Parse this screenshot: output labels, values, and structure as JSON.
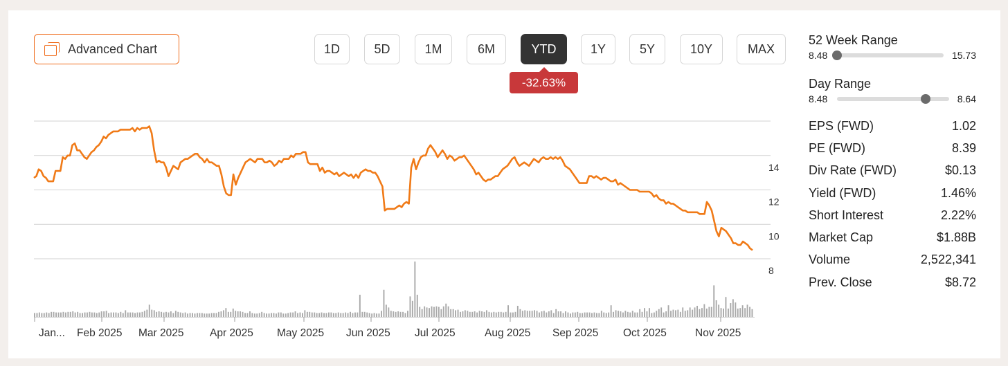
{
  "toolbar": {
    "advanced_chart_label": "Advanced Chart",
    "ranges": [
      "1D",
      "5D",
      "1M",
      "6M",
      "YTD",
      "1Y",
      "5Y",
      "10Y",
      "MAX"
    ],
    "active_range": "YTD",
    "change_badge": "-32.63%"
  },
  "colors": {
    "line": "#f07a17",
    "accent": "#ef6b1a",
    "badge": "#c8383a",
    "volume": "#a9a9a9"
  },
  "stats": {
    "week52": {
      "title": "52 Week Range",
      "low": "8.48",
      "high": "15.73",
      "position": 0.0
    },
    "day": {
      "title": "Day Range",
      "low": "8.48",
      "high": "8.64",
      "position": 0.79
    },
    "rows": [
      {
        "label": "EPS (FWD)",
        "value": "1.02"
      },
      {
        "label": "PE (FWD)",
        "value": "8.39"
      },
      {
        "label": "Div Rate (FWD)",
        "value": "$0.13"
      },
      {
        "label": "Yield (FWD)",
        "value": "1.46%"
      },
      {
        "label": "Short Interest",
        "value": "2.22%"
      },
      {
        "label": "Market Cap",
        "value": "$1.88B"
      },
      {
        "label": "Volume",
        "value": "2,522,341"
      },
      {
        "label": "Prev. Close",
        "value": "$8.72"
      }
    ]
  },
  "chart_data": {
    "type": "line",
    "x_tick_labels": [
      "Jan...",
      "Feb 2025",
      "Mar 2025",
      "Apr 2025",
      "May 2025",
      "Jun 2025",
      "Jul 2025",
      "Aug 2025",
      "Sep 2025",
      "Oct 2025",
      "Nov 2025"
    ],
    "y_tick_labels": [
      "14",
      "12",
      "10",
      "8"
    ],
    "ylim": [
      8,
      16
    ],
    "grid": true,
    "series": [
      {
        "values": [
          12.7,
          12.8,
          13.2,
          13.1,
          12.8,
          12.7,
          12.5,
          12.5,
          12.5,
          13.1,
          13.1,
          13.1,
          13.9,
          13.8,
          14.0,
          14.0,
          14.6,
          14.7,
          14.3,
          14.3,
          14.1,
          13.9,
          13.8,
          14.0,
          14.2,
          14.3,
          14.5,
          14.6,
          14.8,
          15.1,
          15.0,
          15.2,
          15.3,
          15.4,
          15.4,
          15.4,
          15.5,
          15.5,
          15.5,
          15.5,
          15.5,
          15.6,
          15.4,
          15.6,
          15.5,
          15.6,
          15.6,
          15.6,
          15.7,
          15.3,
          14.3,
          13.6,
          13.7,
          13.6,
          13.6,
          13.3,
          12.8,
          13.1,
          13.4,
          13.3,
          13.2,
          13.6,
          13.7,
          13.8,
          13.8,
          13.9,
          14.0,
          14.1,
          14.1,
          13.9,
          13.8,
          13.6,
          13.8,
          13.6,
          13.6,
          13.5,
          13.4,
          13.4,
          12.9,
          12.2,
          11.8,
          11.7,
          11.7,
          12.9,
          12.3,
          12.7,
          13.0,
          13.3,
          13.6,
          13.7,
          13.8,
          13.7,
          13.6,
          13.8,
          13.8,
          13.8,
          13.6,
          13.6,
          13.7,
          13.6,
          13.4,
          13.5,
          13.7,
          13.6,
          13.8,
          13.8,
          13.8,
          14.0,
          13.9,
          14.1,
          14.1,
          14.1,
          14.2,
          14.2,
          13.6,
          13.5,
          13.5,
          13.5,
          13.5,
          13.1,
          13.3,
          13.0,
          13.1,
          13.1,
          13.0,
          12.9,
          13.0,
          12.8,
          12.9,
          13.0,
          12.9,
          12.8,
          12.9,
          12.7,
          12.9,
          12.7,
          13.0,
          13.1,
          13.2,
          13.1,
          13.1,
          13.0,
          13.0,
          12.8,
          12.5,
          12.2,
          10.8,
          10.9,
          10.9,
          10.9,
          10.9,
          11.0,
          11.1,
          11.0,
          11.2,
          11.3,
          11.2,
          13.3,
          13.8,
          13.2,
          13.6,
          13.9,
          14.0,
          14.0,
          14.4,
          14.6,
          14.4,
          14.2,
          13.9,
          14.1,
          14.3,
          14.1,
          13.8,
          14.0,
          13.9,
          13.7,
          13.8,
          13.9,
          13.9,
          14.0,
          13.8,
          13.6,
          13.4,
          13.2,
          12.9,
          13.0,
          12.8,
          12.6,
          12.5,
          12.6,
          12.6,
          12.7,
          12.8,
          12.8,
          13.0,
          13.2,
          13.3,
          13.4,
          13.6,
          13.8,
          13.9,
          13.6,
          13.4,
          13.5,
          13.6,
          13.5,
          13.4,
          13.6,
          13.8,
          13.7,
          13.6,
          13.8,
          13.9,
          13.8,
          13.8,
          13.9,
          13.8,
          13.9,
          13.8,
          13.9,
          13.7,
          13.4,
          13.3,
          13.2,
          13.0,
          12.8,
          12.6,
          12.4,
          12.4,
          12.4,
          12.4,
          12.8,
          12.8,
          12.7,
          12.8,
          12.7,
          12.6,
          12.7,
          12.7,
          12.6,
          12.5,
          12.5,
          12.6,
          12.3,
          12.4,
          12.3,
          12.2,
          12.1,
          12.0,
          12.0,
          12.0,
          12.0,
          11.9,
          11.9,
          11.9,
          11.9,
          11.9,
          11.8,
          11.6,
          11.7,
          11.5,
          11.4,
          11.4,
          11.2,
          11.3,
          11.2,
          11.2,
          11.1,
          11.0,
          10.9,
          10.8,
          10.8,
          10.7,
          10.7,
          10.7,
          10.7,
          10.7,
          10.6,
          10.6,
          10.6,
          11.3,
          11.1,
          10.8,
          10.2,
          9.6,
          9.3,
          9.8,
          9.7,
          9.6,
          9.4,
          9.2,
          8.9,
          8.9,
          8.8,
          8.8,
          9.0,
          8.9,
          8.8,
          8.6,
          8.5
        ]
      }
    ],
    "volume": [
      0.07,
      0.07,
      0.08,
      0.07,
      0.07,
      0.08,
      0.07,
      0.09,
      0.09,
      0.08,
      0.08,
      0.08,
      0.09,
      0.08,
      0.09,
      0.09,
      0.1,
      0.08,
      0.09,
      0.07,
      0.07,
      0.08,
      0.08,
      0.09,
      0.08,
      0.08,
      0.07,
      0.08,
      0.1,
      0.1,
      0.11,
      0.07,
      0.08,
      0.08,
      0.08,
      0.07,
      0.09,
      0.07,
      0.12,
      0.08,
      0.08,
      0.08,
      0.07,
      0.08,
      0.08,
      0.09,
      0.11,
      0.13,
      0.22,
      0.13,
      0.12,
      0.09,
      0.1,
      0.09,
      0.08,
      0.09,
      0.08,
      0.1,
      0.07,
      0.11,
      0.09,
      0.08,
      0.07,
      0.08,
      0.06,
      0.07,
      0.07,
      0.06,
      0.07,
      0.07,
      0.07,
      0.06,
      0.06,
      0.06,
      0.07,
      0.07,
      0.07,
      0.09,
      0.1,
      0.12,
      0.16,
      0.09,
      0.09,
      0.15,
      0.11,
      0.1,
      0.1,
      0.09,
      0.07,
      0.07,
      0.1,
      0.07,
      0.06,
      0.06,
      0.07,
      0.09,
      0.07,
      0.06,
      0.06,
      0.07,
      0.07,
      0.06,
      0.08,
      0.08,
      0.06,
      0.06,
      0.07,
      0.08,
      0.08,
      0.1,
      0.07,
      0.08,
      0.07,
      0.12,
      0.09,
      0.09,
      0.08,
      0.08,
      0.07,
      0.07,
      0.08,
      0.07,
      0.07,
      0.08,
      0.08,
      0.07,
      0.07,
      0.08,
      0.07,
      0.07,
      0.08,
      0.07,
      0.09,
      0.07,
      0.08,
      0.08,
      0.4,
      0.09,
      0.09,
      0.08,
      0.07,
      0.06,
      0.07,
      0.06,
      0.06,
      0.11,
      0.49,
      0.22,
      0.17,
      0.11,
      0.1,
      0.09,
      0.1,
      0.09,
      0.09,
      0.07,
      0.11,
      0.37,
      0.29,
      1.0,
      0.4,
      0.18,
      0.14,
      0.19,
      0.17,
      0.16,
      0.19,
      0.18,
      0.19,
      0.18,
      0.14,
      0.19,
      0.24,
      0.19,
      0.14,
      0.14,
      0.12,
      0.13,
      0.09,
      0.1,
      0.12,
      0.11,
      0.09,
      0.09,
      0.1,
      0.08,
      0.11,
      0.1,
      0.09,
      0.12,
      0.09,
      0.08,
      0.09,
      0.08,
      0.09,
      0.09,
      0.08,
      0.09,
      0.21,
      0.08,
      0.08,
      0.09,
      0.2,
      0.14,
      0.11,
      0.12,
      0.11,
      0.11,
      0.11,
      0.12,
      0.11,
      0.08,
      0.1,
      0.11,
      0.08,
      0.1,
      0.12,
      0.07,
      0.14,
      0.1,
      0.1,
      0.07,
      0.1,
      0.08,
      0.06,
      0.08,
      0.08,
      0.09,
      0.07,
      0.07,
      0.08,
      0.08,
      0.08,
      0.07,
      0.08,
      0.07,
      0.07,
      0.11,
      0.08,
      0.07,
      0.08,
      0.21,
      0.09,
      0.12,
      0.11,
      0.1,
      0.08,
      0.11,
      0.09,
      0.08,
      0.11,
      0.08,
      0.08,
      0.14,
      0.09,
      0.16,
      0.1,
      0.16,
      0.07,
      0.08,
      0.11,
      0.14,
      0.17,
      0.08,
      0.1,
      0.21,
      0.11,
      0.13,
      0.12,
      0.13,
      0.09,
      0.17,
      0.11,
      0.12,
      0.17,
      0.13,
      0.17,
      0.2,
      0.14,
      0.16,
      0.23,
      0.15,
      0.18,
      0.18,
      0.57,
      0.3,
      0.22,
      0.16,
      0.15,
      0.36,
      0.15,
      0.25,
      0.32,
      0.26,
      0.15,
      0.16,
      0.21,
      0.16,
      0.22,
      0.18,
      0.14
    ]
  }
}
